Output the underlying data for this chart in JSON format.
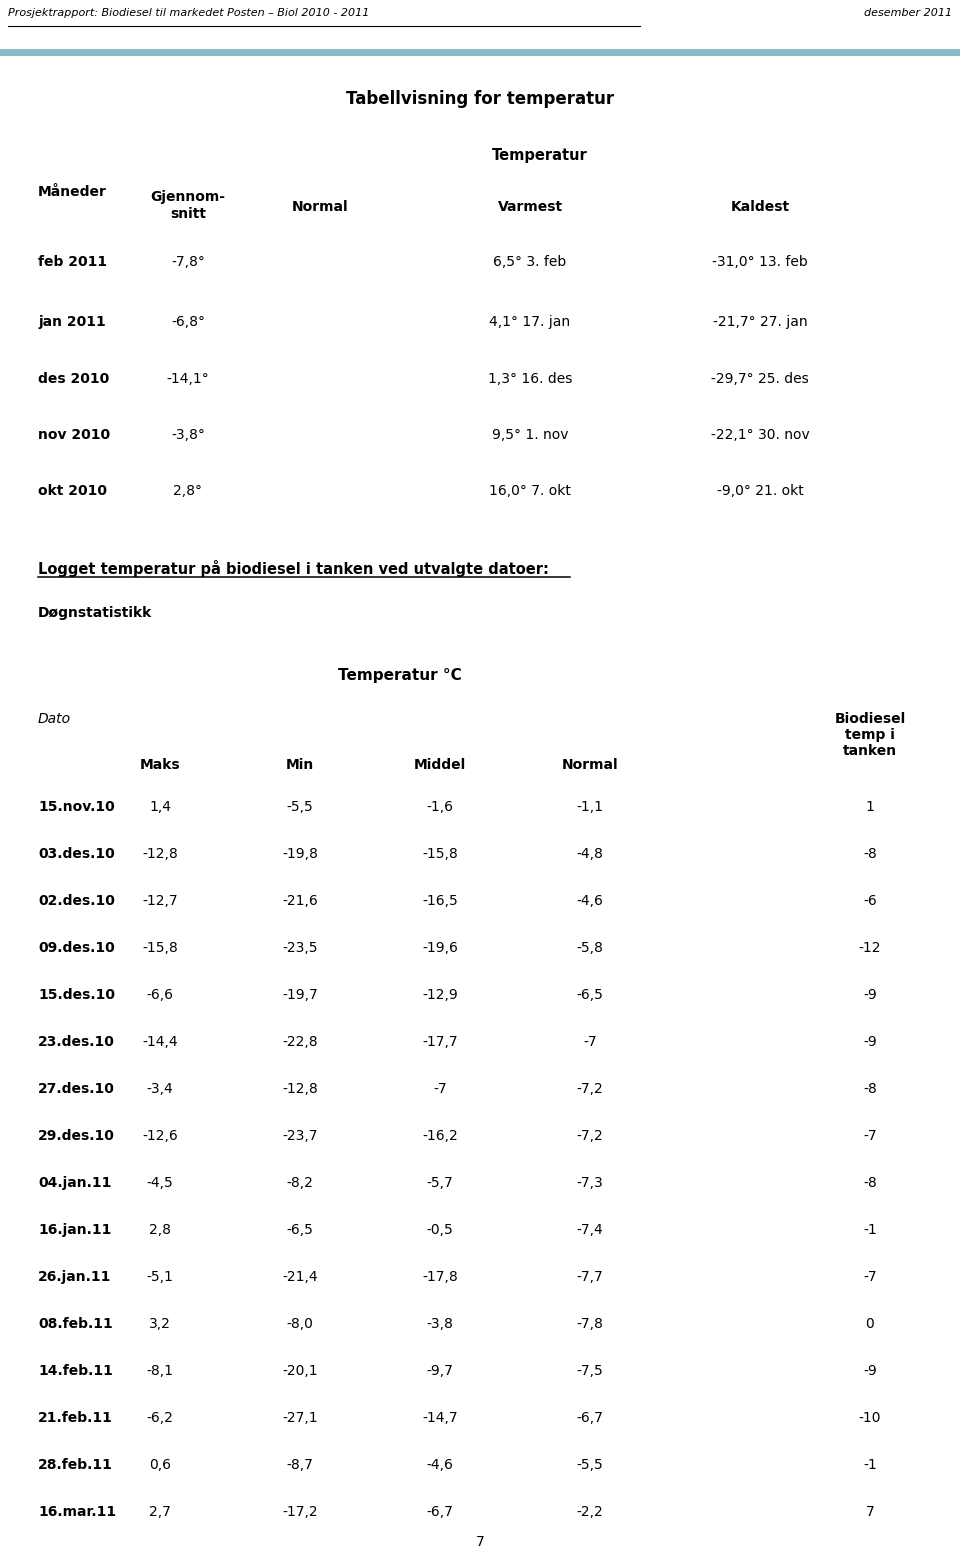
{
  "header_text": "Prosjektrapport: Biodiesel til markedet Posten – Biol 2010 - 2011",
  "header_right": "desember 2011",
  "header_line_color": "#8BB8C8",
  "page_number": "7",
  "title1": "Tabellvisning for temperatur",
  "subtitle1": "Temperatur",
  "table1_rows": [
    [
      "feb 2011",
      "-7,8°",
      "",
      "6,5° 3. feb",
      "-31,0° 13. feb"
    ],
    [
      "jan 2011",
      "-6,8°",
      "",
      "4,1° 17. jan",
      "-21,7° 27. jan"
    ],
    [
      "des 2010",
      "-14,1°",
      "",
      "1,3° 16. des",
      "-29,7° 25. des"
    ],
    [
      "nov 2010",
      "-3,8°",
      "",
      "9,5° 1. nov",
      "-22,1° 30. nov"
    ],
    [
      "okt 2010",
      "2,8°",
      "",
      "16,0° 7. okt",
      "-9,0° 21. okt"
    ]
  ],
  "section2_title": "Logget temperatur på biodiesel i tanken ved utvalgte datoer:",
  "section2_sub": "Døgnstatistikk",
  "table2_title": "Temperatur °C",
  "table2_rows": [
    [
      "15.nov.10",
      "1,4",
      "-5,5",
      "-1,6",
      "-1,1",
      "1"
    ],
    [
      "03.des.10",
      "-12,8",
      "-19,8",
      "-15,8",
      "-4,8",
      "-8"
    ],
    [
      "02.des.10",
      "-12,7",
      "-21,6",
      "-16,5",
      "-4,6",
      "-6"
    ],
    [
      "09.des.10",
      "-15,8",
      "-23,5",
      "-19,6",
      "-5,8",
      "-12"
    ],
    [
      "15.des.10",
      "-6,6",
      "-19,7",
      "-12,9",
      "-6,5",
      "-9"
    ],
    [
      "23.des.10",
      "-14,4",
      "-22,8",
      "-17,7",
      "-7",
      "-9"
    ],
    [
      "27.des.10",
      "-3,4",
      "-12,8",
      "-7",
      "-7,2",
      "-8"
    ],
    [
      "29.des.10",
      "-12,6",
      "-23,7",
      "-16,2",
      "-7,2",
      "-7"
    ],
    [
      "04.jan.11",
      "-4,5",
      "-8,2",
      "-5,7",
      "-7,3",
      "-8"
    ],
    [
      "16.jan.11",
      "2,8",
      "-6,5",
      "-0,5",
      "-7,4",
      "-1"
    ],
    [
      "26.jan.11",
      "-5,1",
      "-21,4",
      "-17,8",
      "-7,7",
      "-7"
    ],
    [
      "08.feb.11",
      "3,2",
      "-8,0",
      "-3,8",
      "-7,8",
      "0"
    ],
    [
      "14.feb.11",
      "-8,1",
      "-20,1",
      "-9,7",
      "-7,5",
      "-9"
    ],
    [
      "21.feb.11",
      "-6,2",
      "-27,1",
      "-14,7",
      "-6,7",
      "-10"
    ],
    [
      "28.feb.11",
      "0,6",
      "-8,7",
      "-4,6",
      "-5,5",
      "-1"
    ],
    [
      "16.mar.11",
      "2,7",
      "-17,2",
      "-6,7",
      "-2,2",
      "7"
    ]
  ],
  "bg_color": "#ffffff",
  "text_color": "#000000"
}
